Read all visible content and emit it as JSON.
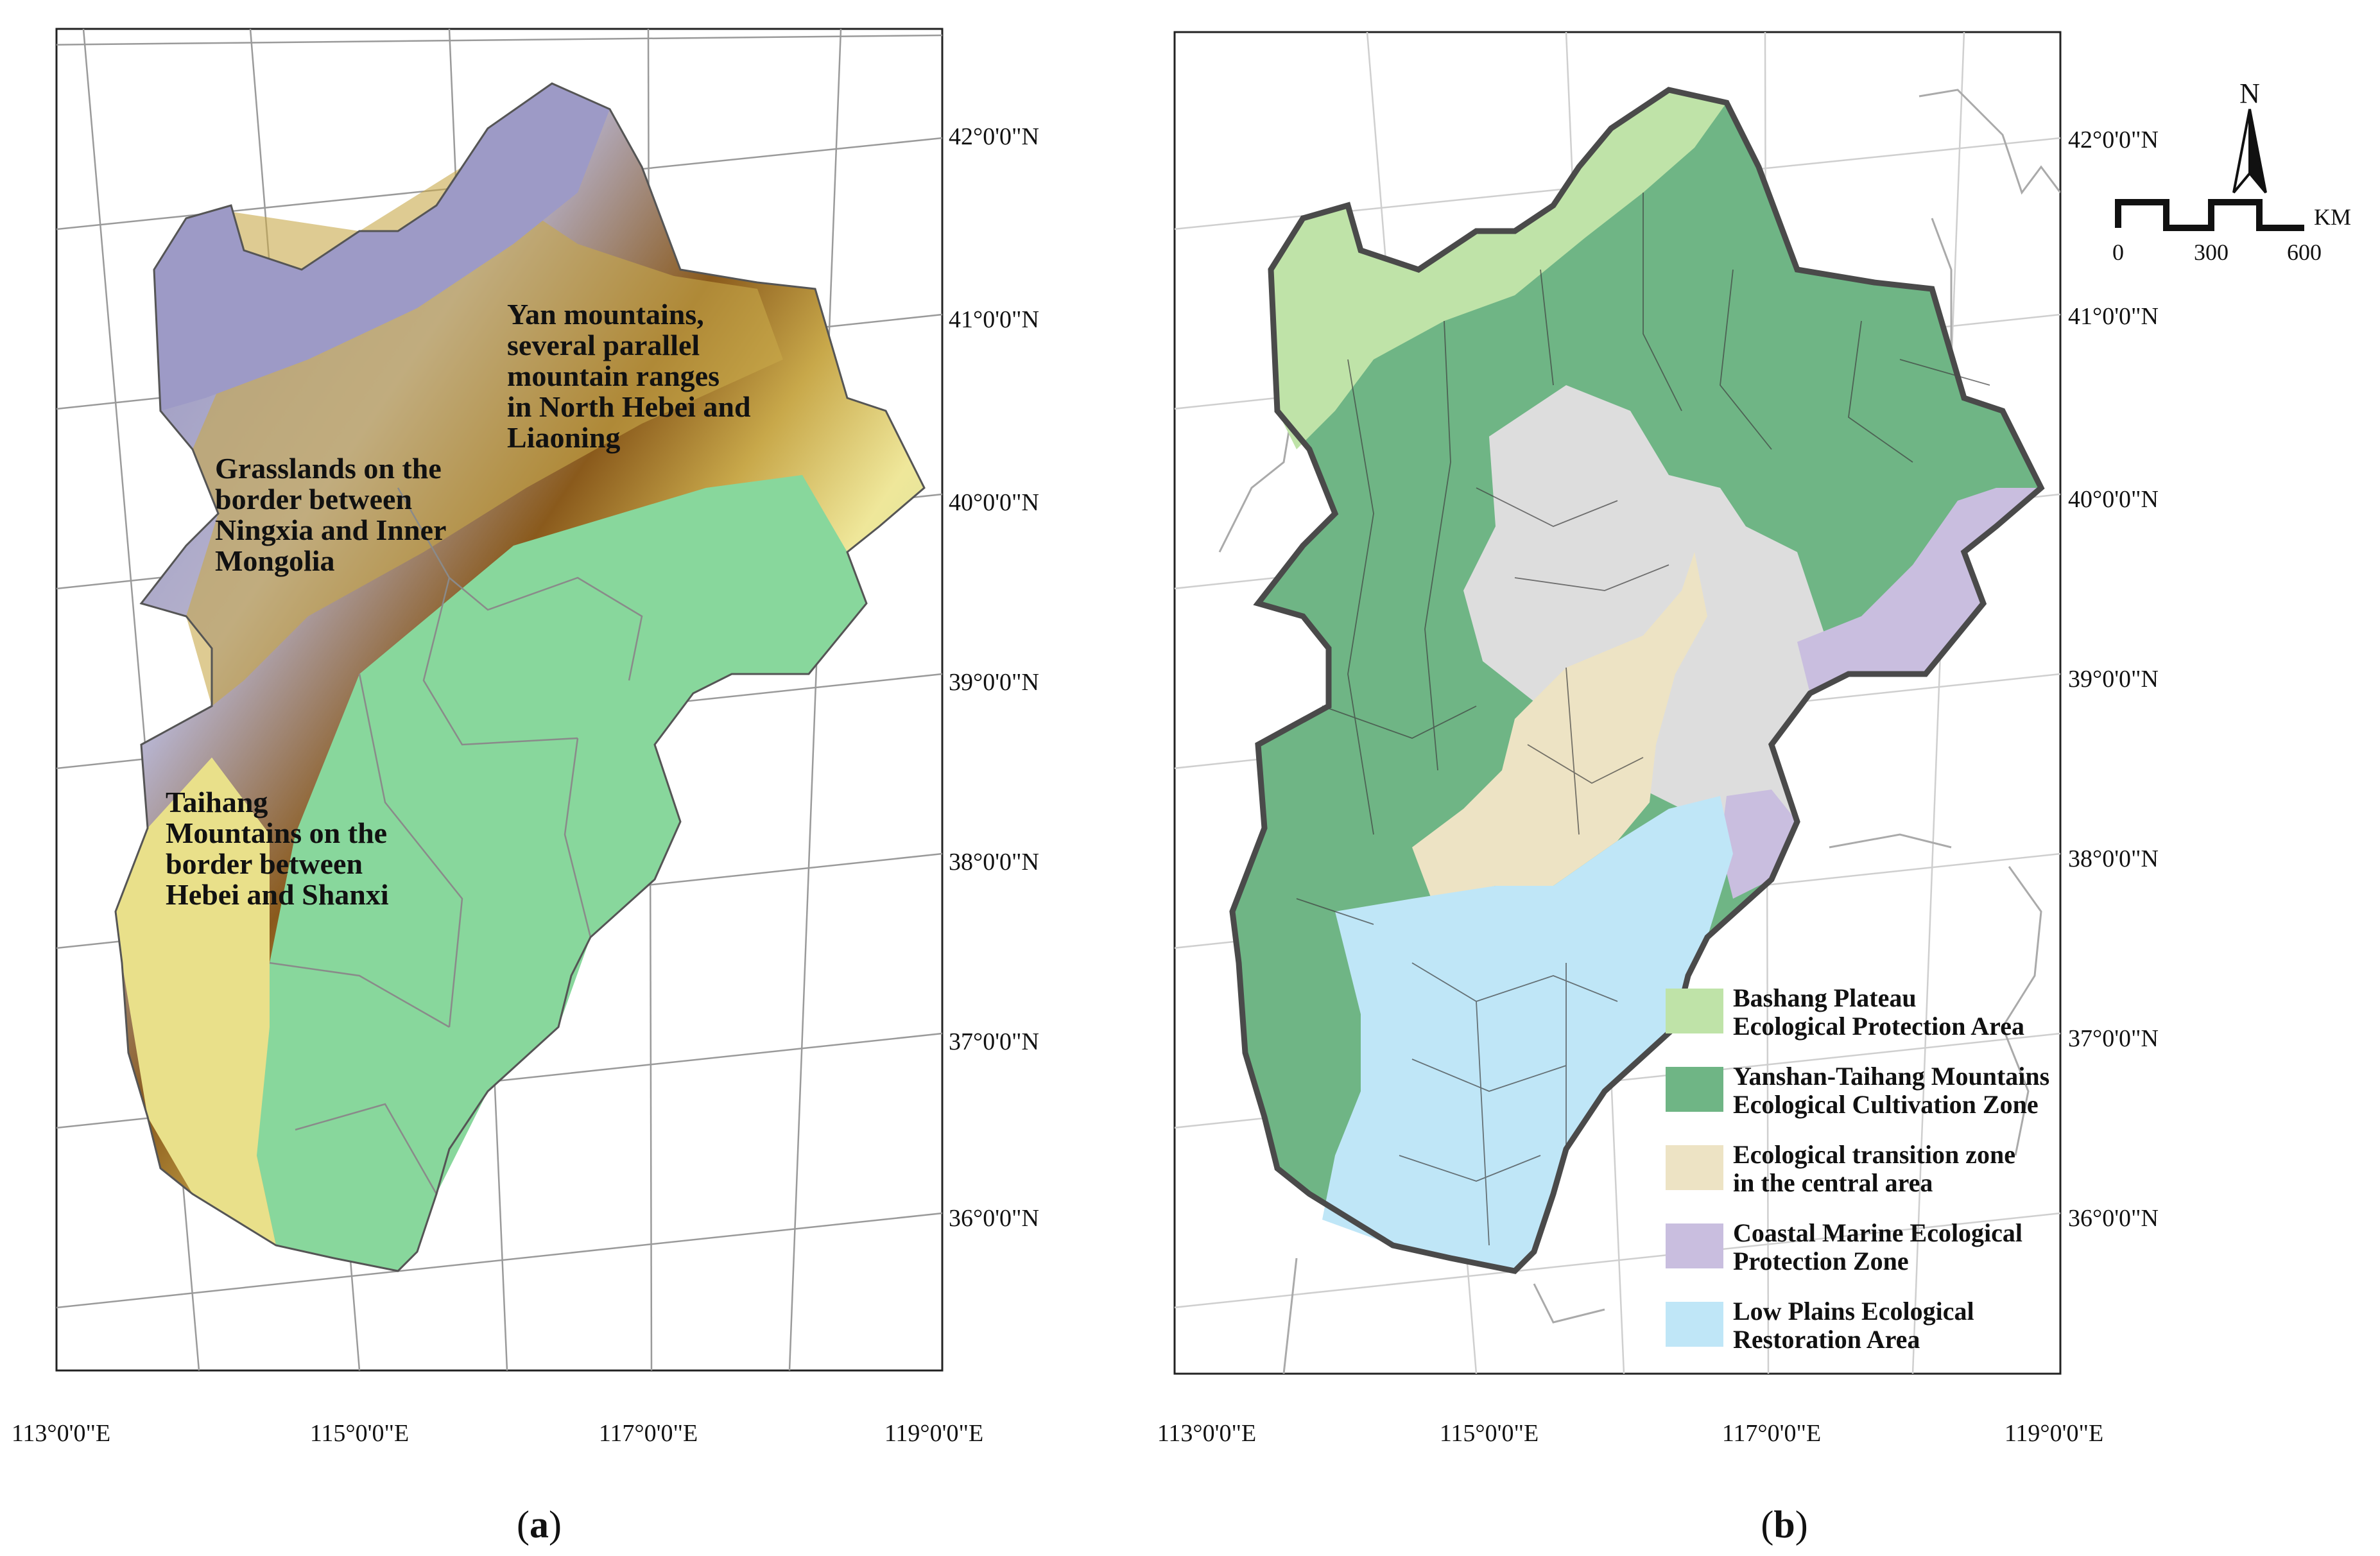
{
  "panels": [
    {
      "id": "a",
      "caption": "a",
      "lat_labels": [
        "42°0'0\"N",
        "41°0'0\"N",
        "40°0'0\"N",
        "39°0'0\"N",
        "38°0'0\"N",
        "37°0'0\"N",
        "36°0'0\"N"
      ],
      "lon_labels": [
        "113°0'0\"E",
        "115°0'0\"E",
        "117°0'0\"E",
        "119°0'0\"E"
      ],
      "annotations": {
        "yan": [
          "Yan mountains,",
          "several parallel",
          "mountain ranges",
          "in North Hebei and",
          "Liaoning"
        ],
        "grass": [
          "Grasslands on the",
          "border between",
          "Ningxia and Inner",
          "Mongolia"
        ],
        "taihang": [
          "Taihang",
          "Mountains on the",
          "border between",
          "Hebei and Shanxi"
        ]
      },
      "relief_colors": [
        "#8f8fbf",
        "#b6b2cc",
        "#e8e8ec",
        "#8a5a1c",
        "#c8a84a",
        "#efe79a",
        "#a9dc8a",
        "#7fd39a"
      ]
    },
    {
      "id": "b",
      "caption": "b",
      "lat_labels": [
        "42°0'0\"N",
        "41°0'0\"N",
        "40°0'0\"N",
        "39°0'0\"N",
        "38°0'0\"N",
        "37°0'0\"N",
        "36°0'0\"N"
      ],
      "lon_labels": [
        "113°0'0\"E",
        "115°0'0\"E",
        "117°0'0\"E",
        "119°0'0\"E"
      ],
      "north_arrow": "N",
      "scale_bar": {
        "unit": "KM",
        "ticks": [
          "0",
          "300",
          "600"
        ]
      },
      "legend": [
        {
          "lines": [
            "Bashang Plateau",
            "Ecological Protection Area"
          ],
          "color": "#bfe3a8"
        },
        {
          "lines": [
            "Yanshan-Taihang Mountains",
            "Ecological Cultivation Zone"
          ],
          "color": "#6fb585"
        },
        {
          "lines": [
            "Ecological transition zone",
            "in the central area"
          ],
          "color": "#ede3c4"
        },
        {
          "lines": [
            "Coastal Marine Ecological",
            "Protection Zone"
          ],
          "color": "#c9bedf"
        },
        {
          "lines": [
            "Low Plains Ecological",
            "Restoration Area"
          ],
          "color": "#bfe6f7"
        }
      ],
      "other_zone_color": "#dddddd"
    }
  ]
}
